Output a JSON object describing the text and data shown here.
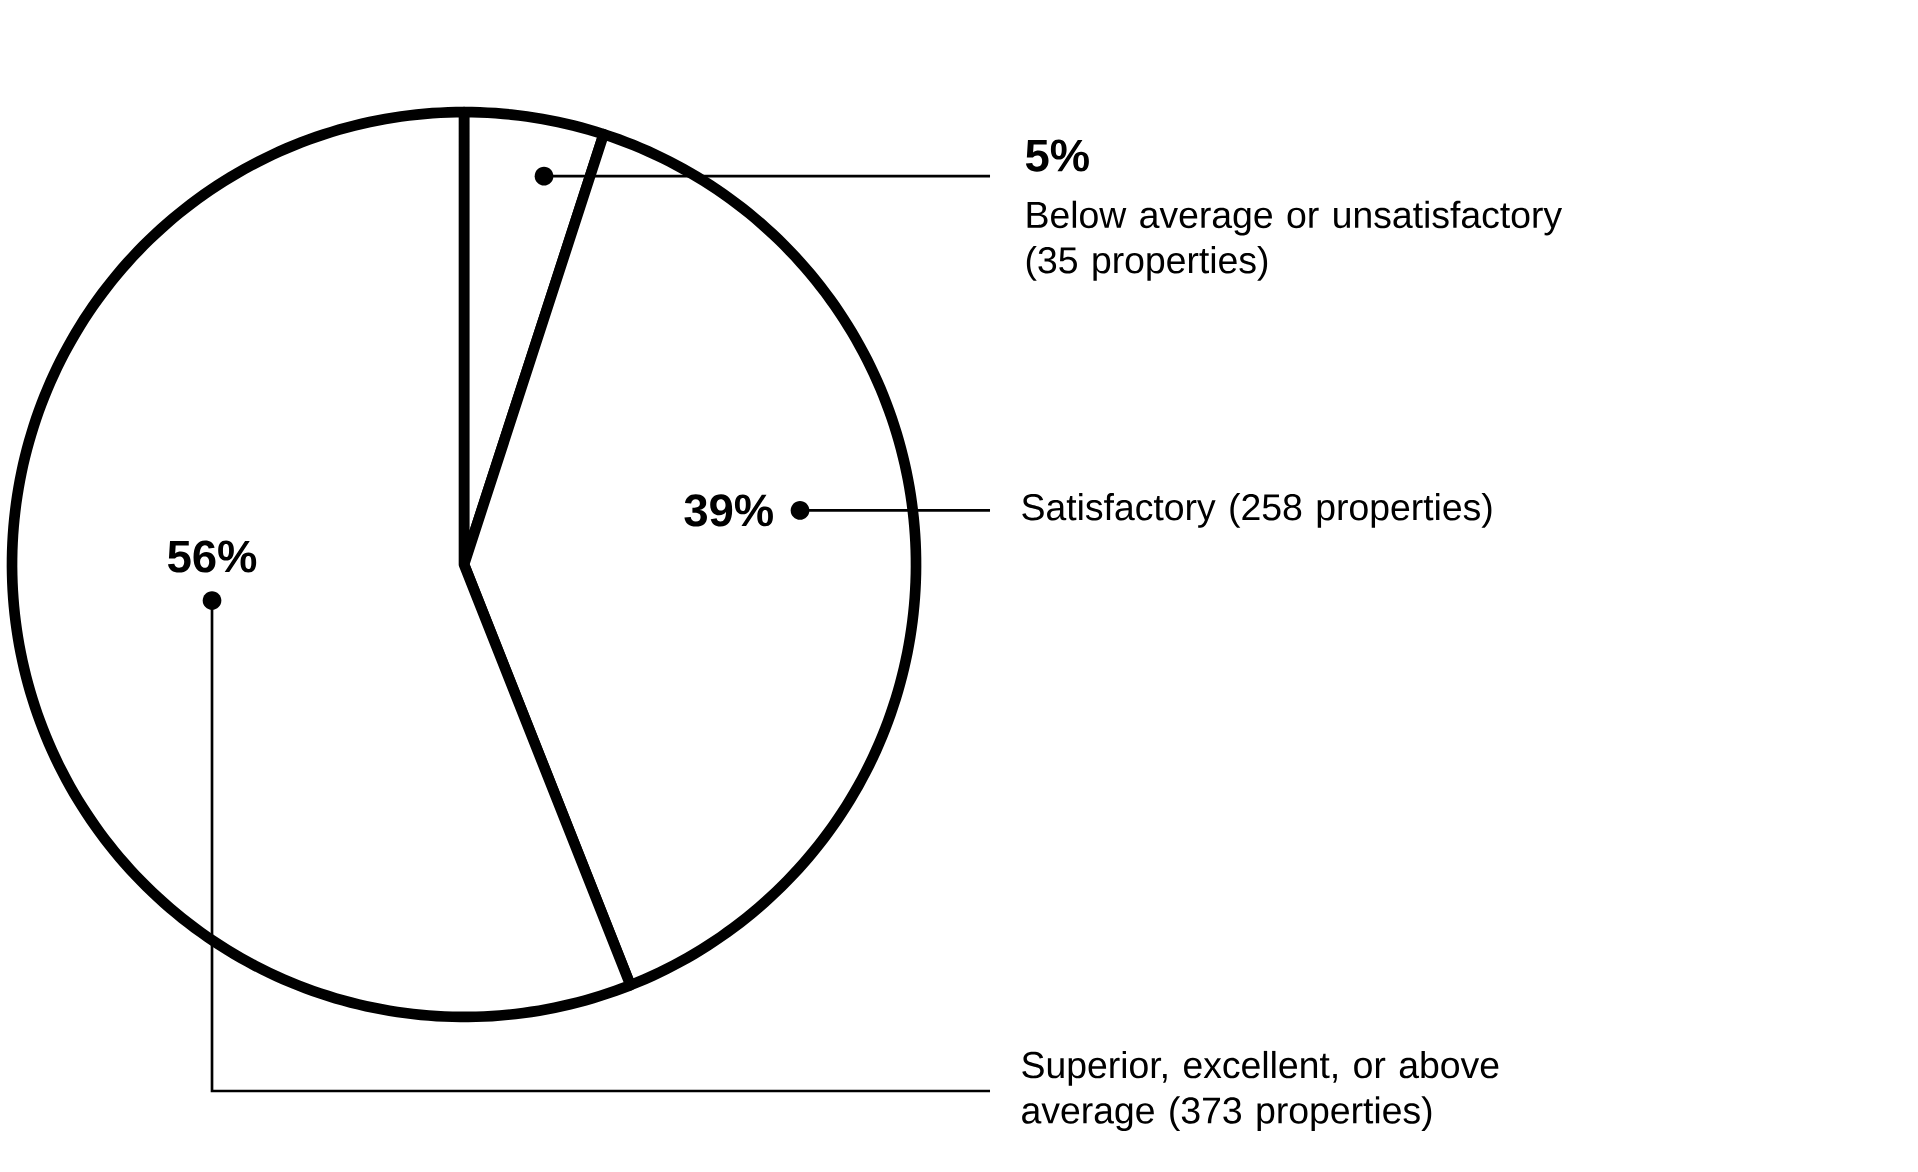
{
  "chart_data": {
    "type": "pie",
    "categories": [
      "Below average or unsatisfactory (35 properties)",
      "Satisfactory (258 properties)",
      "Superior, excellent, or above average (373 properties)"
    ],
    "values": [
      5,
      39,
      56
    ],
    "colors": [
      "#ffffff",
      "#ffffff",
      "#ffffff"
    ],
    "value_labels": [
      "5%",
      "39%",
      "56%"
    ]
  }
}
